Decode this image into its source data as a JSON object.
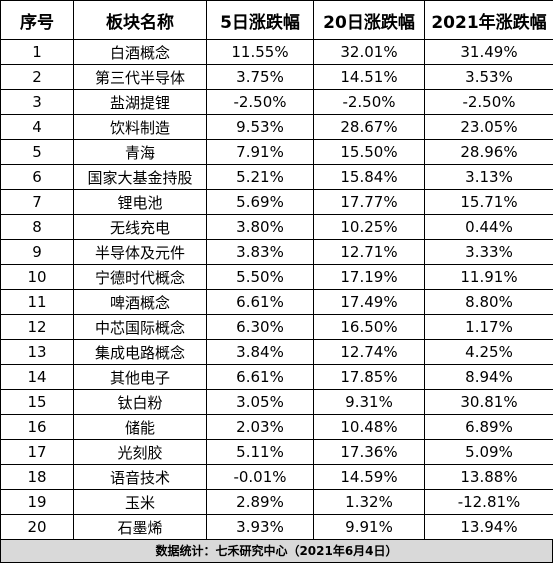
{
  "table": {
    "headers": [
      "序号",
      "板块名称",
      "5日涨跌幅",
      "20日涨跌幅",
      "2021年涨跌幅"
    ],
    "rows": [
      [
        "1",
        "白酒概念",
        "11.55%",
        "32.01%",
        "31.49%"
      ],
      [
        "2",
        "第三代半导体",
        "3.75%",
        "14.51%",
        "3.53%"
      ],
      [
        "3",
        "盐湖提锂",
        "-2.50%",
        "-2.50%",
        "-2.50%"
      ],
      [
        "4",
        "饮料制造",
        "9.53%",
        "28.67%",
        "23.05%"
      ],
      [
        "5",
        "青海",
        "7.91%",
        "15.50%",
        "28.96%"
      ],
      [
        "6",
        "国家大基金持股",
        "5.21%",
        "15.84%",
        "3.13%"
      ],
      [
        "7",
        "锂电池",
        "5.69%",
        "17.77%",
        "15.71%"
      ],
      [
        "8",
        "无线充电",
        "3.80%",
        "10.25%",
        "0.44%"
      ],
      [
        "9",
        "半导体及元件",
        "3.83%",
        "12.71%",
        "3.33%"
      ],
      [
        "10",
        "宁德时代概念",
        "5.50%",
        "17.19%",
        "11.91%"
      ],
      [
        "11",
        "啤酒概念",
        "6.61%",
        "17.49%",
        "8.80%"
      ],
      [
        "12",
        "中芯国际概念",
        "6.30%",
        "16.50%",
        "1.17%"
      ],
      [
        "13",
        "集成电路概念",
        "3.84%",
        "12.74%",
        "4.25%"
      ],
      [
        "14",
        "其他电子",
        "6.61%",
        "17.85%",
        "8.94%"
      ],
      [
        "15",
        "钛白粉",
        "3.05%",
        "9.31%",
        "30.81%"
      ],
      [
        "16",
        "储能",
        "2.03%",
        "10.48%",
        "6.89%"
      ],
      [
        "17",
        "光刻胶",
        "5.11%",
        "17.36%",
        "5.09%"
      ],
      [
        "18",
        "语音技术",
        "-0.01%",
        "14.59%",
        "13.88%"
      ],
      [
        "19",
        "玉米",
        "2.89%",
        "1.32%",
        "-12.81%"
      ],
      [
        "20",
        "石墨烯",
        "3.93%",
        "9.91%",
        "13.94%"
      ]
    ]
  },
  "footer": "数据统计：七禾研究中心（2021年6月4日）"
}
